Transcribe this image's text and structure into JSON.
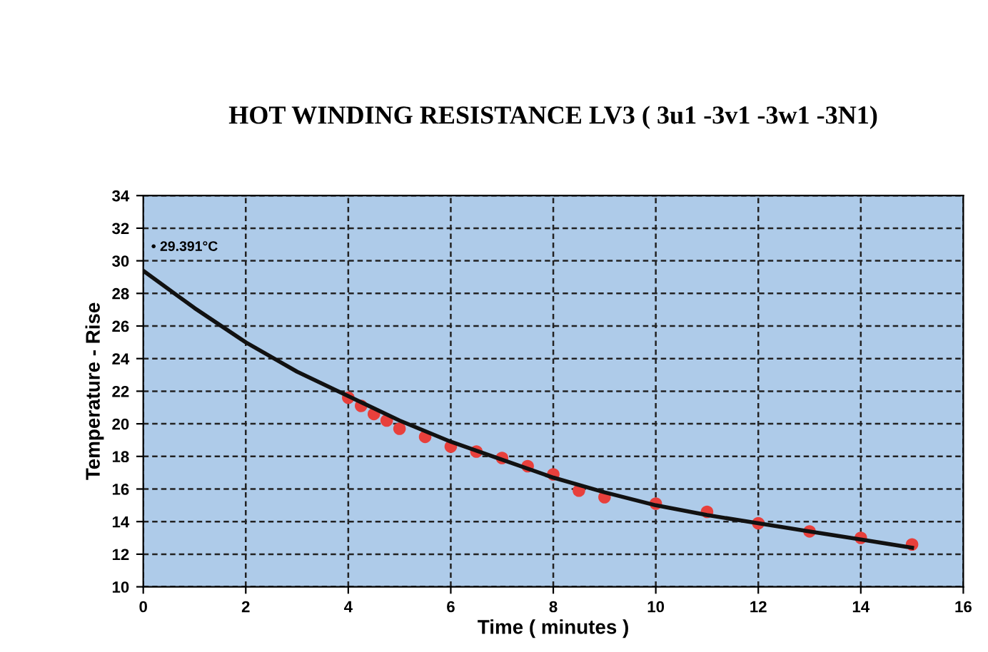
{
  "chart_data": {
    "type": "scatter",
    "title": "HOT WINDING RESISTANCE LV3 ( 3u1 -3v1 -3w1 -3N1)",
    "xlabel": "Time ( minutes )",
    "ylabel": "Temperature - Rise",
    "xlim": [
      0,
      16
    ],
    "xticks": [
      0,
      2,
      4,
      6,
      8,
      10,
      12,
      14,
      16
    ],
    "ylim": [
      10,
      34
    ],
    "yticks": [
      10,
      12,
      14,
      16,
      18,
      20,
      22,
      24,
      26,
      28,
      30,
      32,
      34
    ],
    "grid": true,
    "legend": false,
    "annotations": [
      {
        "text": "• 29.391°C",
        "x": 0,
        "y": 29.391
      }
    ],
    "series": [
      {
        "color": "#e8403c",
        "marker": "circle",
        "x": [
          4,
          4.25,
          4.5,
          4.75,
          5,
          5.5,
          6,
          6.5,
          7,
          7.5,
          8,
          8.5,
          9,
          10,
          11,
          12,
          13,
          14,
          15
        ],
        "values": [
          21.6,
          21.1,
          20.6,
          20.2,
          19.7,
          19.2,
          18.6,
          18.3,
          17.9,
          17.4,
          16.9,
          15.9,
          15.5,
          15.1,
          14.6,
          13.9,
          13.4,
          13.0,
          12.6
        ]
      },
      {
        "type": "line",
        "color": "#111111",
        "marker": "none",
        "line_style": "solid",
        "x": [
          0,
          1,
          2,
          3,
          4,
          5,
          6,
          7,
          8,
          9,
          10,
          11,
          12,
          13,
          14,
          15
        ],
        "values": [
          29.391,
          27.1,
          25.0,
          23.2,
          21.7,
          20.2,
          18.9,
          17.8,
          16.7,
          15.8,
          15.0,
          14.4,
          13.9,
          13.4,
          12.9,
          12.4
        ]
      }
    ]
  }
}
